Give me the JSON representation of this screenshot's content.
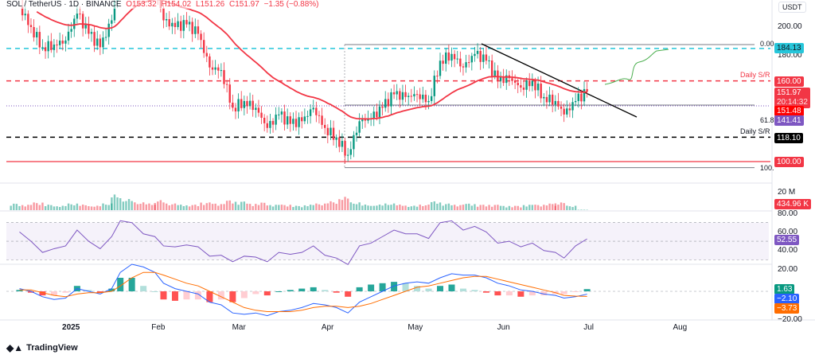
{
  "header": {
    "symbol": "SOL / TetherUS · 1D · BINANCE",
    "open": "O153.32",
    "high": "H154.02",
    "low": "L151.26",
    "close": "C151.97",
    "change": "−1.35 (−0.88%)"
  },
  "unit": "USDT",
  "colors": {
    "up": "#089981",
    "down": "#f23645",
    "ma": "#f23645",
    "rsi": "#7e57c2",
    "macd": "#2962ff",
    "signal": "#ff6d00",
    "cyan": "#26c6da"
  },
  "chart_data": {
    "type": "candlestick",
    "price_ylim": [
      90,
      215
    ],
    "price_ticks": [
      "200.00",
      "180.00"
    ],
    "dates": [
      "2024-12-15",
      "2024-12-19",
      "2024-12-23",
      "2024-12-27",
      "2024-12-31",
      "2025-01-04",
      "2025-01-08",
      "2025-01-12",
      "2025-01-16",
      "2025-01-19",
      "2025-01-23",
      "2025-01-27",
      "2025-01-31",
      "2025-02-03",
      "2025-02-07",
      "2025-02-11",
      "2025-02-15",
      "2025-02-19",
      "2025-02-23",
      "2025-02-27",
      "2025-03-03",
      "2025-03-07",
      "2025-03-11",
      "2025-03-15",
      "2025-03-19",
      "2025-03-23",
      "2025-03-27",
      "2025-03-31",
      "2025-04-04",
      "2025-04-08",
      "2025-04-12",
      "2025-04-16",
      "2025-04-20",
      "2025-04-24",
      "2025-04-28",
      "2025-05-02",
      "2025-05-06",
      "2025-05-10",
      "2025-05-14",
      "2025-05-18",
      "2025-05-22",
      "2025-05-26",
      "2025-05-30",
      "2025-06-03",
      "2025-06-07",
      "2025-06-11",
      "2025-06-15",
      "2025-06-19",
      "2025-06-22",
      "2025-06-26",
      "2025-06-30"
    ],
    "closes": [
      215,
      200,
      185,
      187,
      190,
      210,
      195,
      185,
      205,
      250,
      255,
      235,
      230,
      205,
      200,
      202,
      195,
      170,
      168,
      140,
      145,
      140,
      125,
      135,
      128,
      130,
      140,
      125,
      118,
      105,
      130,
      132,
      140,
      150,
      148,
      150,
      145,
      175,
      180,
      170,
      180,
      175,
      160,
      162,
      155,
      160,
      148,
      145,
      135,
      145,
      151.97
    ],
    "volume_m": [
      6,
      5,
      7,
      5,
      4,
      6,
      5,
      4,
      6,
      14,
      10,
      7,
      6,
      9,
      6,
      5,
      5,
      7,
      6,
      9,
      8,
      6,
      7,
      5,
      5,
      4,
      5,
      6,
      8,
      12,
      7,
      5,
      5,
      6,
      5,
      4,
      5,
      8,
      6,
      5,
      6,
      5,
      5,
      4,
      4,
      5,
      5,
      6,
      7,
      4,
      0.43
    ],
    "rsi": [
      60,
      50,
      38,
      42,
      45,
      62,
      50,
      42,
      55,
      72,
      70,
      58,
      55,
      45,
      44,
      46,
      44,
      34,
      35,
      28,
      34,
      33,
      28,
      38,
      36,
      38,
      45,
      35,
      32,
      25,
      45,
      48,
      55,
      62,
      58,
      58,
      53,
      70,
      72,
      62,
      66,
      60,
      48,
      50,
      44,
      48,
      40,
      38,
      32,
      45,
      52.55
    ],
    "macd": [
      2,
      0,
      -4,
      -6,
      -5,
      2,
      0,
      -2,
      2,
      14,
      20,
      18,
      14,
      6,
      2,
      0,
      -2,
      -8,
      -10,
      -16,
      -17,
      -16,
      -18,
      -15,
      -14,
      -12,
      -9,
      -10,
      -12,
      -16,
      -8,
      -4,
      0,
      4,
      6,
      7,
      6,
      10,
      13,
      12,
      12,
      10,
      6,
      4,
      1,
      0,
      -2,
      -3,
      -5,
      -4,
      -2.1
    ],
    "signal": [
      1,
      1,
      -1,
      -3,
      -4,
      -2,
      -1,
      -1,
      0,
      4,
      10,
      14,
      14,
      12,
      9,
      6,
      4,
      0,
      -4,
      -8,
      -12,
      -14,
      -15,
      -15,
      -15,
      -14,
      -12,
      -11,
      -11,
      -12,
      -11,
      -9,
      -6,
      -3,
      0,
      3,
      4,
      6,
      8,
      10,
      11,
      11,
      9,
      7,
      5,
      3,
      1,
      -1,
      -3,
      -3.5,
      -3.73
    ],
    "histogram_last": "1.63",
    "levels": [
      {
        "label": "184.13",
        "price": 184.13,
        "style": "dashed",
        "color": "#26c6da"
      },
      {
        "label": "160.00",
        "price": 160,
        "style": "dashed",
        "color": "#f23645",
        "note": "Daily S/R"
      },
      {
        "label": "118.10",
        "price": 118.1,
        "style": "dashed",
        "color": "#000000",
        "note": "Daily S/R"
      },
      {
        "label": "100.00",
        "price": 100,
        "style": "solid",
        "color": "#f23645"
      },
      {
        "label": "141.41",
        "price": 141.41,
        "style": "dotted",
        "color": "#7e57c2"
      }
    ],
    "fib": [
      {
        "label": "0.00",
        "price": 187
      },
      {
        "label": "61.8",
        "price": 142
      },
      {
        "label": "100.",
        "price": 95.5
      }
    ],
    "last_price": "151.97",
    "countdown": "20:14:32",
    "ma_value": "151.48",
    "volume_ticks": [
      "20 M"
    ],
    "volume_last": "434.96 K",
    "rsi_ticks": [
      "80.00",
      "60.00",
      "40.00",
      "20.00"
    ],
    "rsi_last": "52.55",
    "macd_ticks": [
      "−20.00"
    ],
    "macd_last": "−2.10",
    "signal_last": "−3.73",
    "time_ticks": [
      {
        "label": "2025",
        "date": "2025-01-01"
      },
      {
        "label": "Feb",
        "date": "2025-02-01"
      },
      {
        "label": "Mar",
        "date": "2025-03-01"
      },
      {
        "label": "Apr",
        "date": "2025-04-01"
      },
      {
        "label": "May",
        "date": "2025-05-01"
      },
      {
        "label": "Jun",
        "date": "2025-06-01"
      },
      {
        "label": "Jul",
        "date": "2025-07-01"
      },
      {
        "label": "Aug",
        "date": "2025-08-01"
      }
    ]
  },
  "brand": "TradingView"
}
